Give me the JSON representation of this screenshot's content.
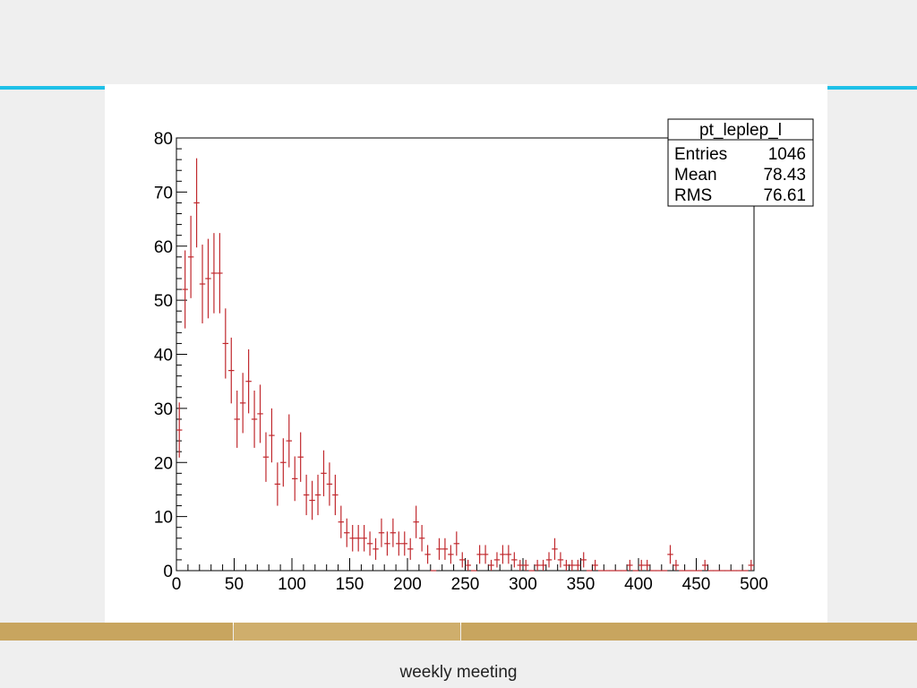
{
  "slide": {
    "footer_text": "weekly meeting",
    "colors": {
      "background": "#efefef",
      "accent_rule": "#1ec0e8",
      "gold_band": "#c8a55f",
      "gold_band_light": "#cfae6c",
      "data_color": "#c0282d"
    }
  },
  "stats_box": {
    "title": "pt_leplep_l",
    "rows": [
      {
        "label": "Entries",
        "value": "1046"
      },
      {
        "label": "Mean",
        "value": "78.43"
      },
      {
        "label": "RMS",
        "value": "76.61"
      }
    ]
  },
  "chart_data": {
    "type": "scatter",
    "style": "histogram with error bars",
    "title": "",
    "xlabel": "",
    "ylabel": "",
    "xlim": [
      0,
      500
    ],
    "ylim": [
      0,
      80
    ],
    "x_ticks": [
      0,
      50,
      100,
      150,
      200,
      250,
      300,
      350,
      400,
      450,
      500
    ],
    "y_ticks": [
      0,
      10,
      20,
      30,
      40,
      50,
      60,
      70,
      80
    ],
    "bin_width": 5,
    "grid": false,
    "legend": "top-right stats box",
    "series": [
      {
        "x": [
          2.5,
          7.5,
          12.5,
          17.5,
          22.5,
          27.5,
          32.5,
          37.5,
          42.5,
          47.5,
          52.5,
          57.5,
          62.5,
          67.5,
          72.5,
          77.5,
          82.5,
          87.5,
          92.5,
          97.5,
          102.5,
          107.5,
          112.5,
          117.5,
          122.5,
          127.5,
          132.5,
          137.5,
          142.5,
          147.5,
          152.5,
          157.5,
          162.5,
          167.5,
          172.5,
          177.5,
          182.5,
          187.5,
          192.5,
          197.5,
          202.5,
          207.5,
          212.5,
          217.5,
          222.5,
          227.5,
          232.5,
          237.5,
          242.5,
          247.5,
          252.5,
          257.5,
          262.5,
          267.5,
          272.5,
          277.5,
          282.5,
          287.5,
          292.5,
          297.5,
          302.5,
          307.5,
          312.5,
          317.5,
          322.5,
          327.5,
          332.5,
          337.5,
          342.5,
          347.5,
          352.5,
          357.5,
          362.5,
          367.5,
          372.5,
          377.5,
          382.5,
          387.5,
          392.5,
          397.5,
          402.5,
          407.5,
          412.5,
          417.5,
          422.5,
          427.5,
          432.5,
          437.5,
          442.5,
          447.5,
          452.5,
          457.5,
          462.5,
          467.5,
          472.5,
          477.5,
          482.5,
          487.5,
          492.5,
          497.5
        ],
        "y": [
          26,
          52,
          58,
          68,
          53,
          54,
          55,
          55,
          42,
          37,
          28,
          31,
          35,
          28,
          29,
          21,
          25,
          16,
          20,
          24,
          17,
          21,
          14,
          13,
          14,
          18,
          16,
          14,
          9,
          7,
          6,
          6,
          6,
          5,
          4,
          7,
          5,
          7,
          5,
          5,
          4,
          9,
          6,
          3,
          0,
          4,
          4,
          3,
          5,
          2,
          1,
          0,
          3,
          3,
          1,
          2,
          3,
          3,
          2,
          1,
          1,
          0,
          1,
          1,
          2,
          4,
          2,
          1,
          1,
          1,
          2,
          0,
          1,
          0,
          0,
          0,
          0,
          0,
          1,
          0,
          1,
          1,
          0,
          0,
          0,
          3,
          1,
          0,
          0,
          0,
          0,
          1,
          0,
          0,
          0,
          0,
          0,
          0,
          0,
          1
        ]
      }
    ]
  }
}
